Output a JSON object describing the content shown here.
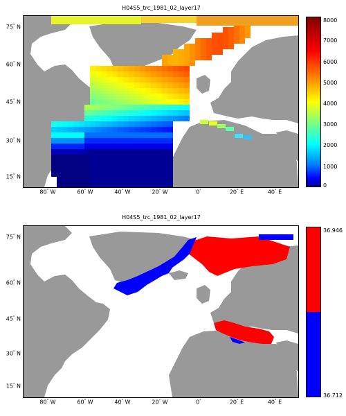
{
  "panels": [
    {
      "title": "H04S5_trc_1981_02_layer17",
      "lat_ticks": [
        {
          "lbl": "75",
          "suf": "N"
        },
        {
          "lbl": "60",
          "suf": "N"
        },
        {
          "lbl": "45",
          "suf": "N"
        },
        {
          "lbl": "30",
          "suf": "N"
        },
        {
          "lbl": "15",
          "suf": "N"
        }
      ],
      "lon_ticks": [
        {
          "lbl": "80",
          "suf": "W"
        },
        {
          "lbl": "60",
          "suf": "W"
        },
        {
          "lbl": "40",
          "suf": "W"
        },
        {
          "lbl": "20",
          "suf": "W"
        },
        {
          "lbl": "0",
          "suf": ""
        },
        {
          "lbl": "20",
          "suf": "E"
        },
        {
          "lbl": "40",
          "suf": "E"
        }
      ],
      "colorbar": {
        "type": "jet",
        "ticks": [
          "8000",
          "7000",
          "6000",
          "5000",
          "4000",
          "3000",
          "2000",
          "1000",
          "0"
        ],
        "range": [
          0,
          8000
        ]
      }
    },
    {
      "title": "H04S5_trc_1981_02_layer17",
      "lat_ticks": [
        {
          "lbl": "75",
          "suf": "N"
        },
        {
          "lbl": "60",
          "suf": "N"
        },
        {
          "lbl": "45",
          "suf": "N"
        },
        {
          "lbl": "30",
          "suf": "N"
        },
        {
          "lbl": "15",
          "suf": "N"
        }
      ],
      "lon_ticks": [
        {
          "lbl": "80",
          "suf": "W"
        },
        {
          "lbl": "60",
          "suf": "W"
        },
        {
          "lbl": "40",
          "suf": "W"
        },
        {
          "lbl": "20",
          "suf": "W"
        },
        {
          "lbl": "0",
          "suf": ""
        },
        {
          "lbl": "20",
          "suf": "E"
        },
        {
          "lbl": "40",
          "suf": "E"
        }
      ],
      "colorbar": {
        "type": "binary",
        "ticks": [
          "36.946",
          "36.712"
        ],
        "range": [
          36.712,
          36.946
        ],
        "colors": [
          "#ff0000",
          "#0000ff"
        ]
      }
    }
  ],
  "colors": {
    "land": "#999999",
    "ocean_blank": "#ffffff",
    "red": "#ff0000",
    "blue": "#0000ff"
  }
}
